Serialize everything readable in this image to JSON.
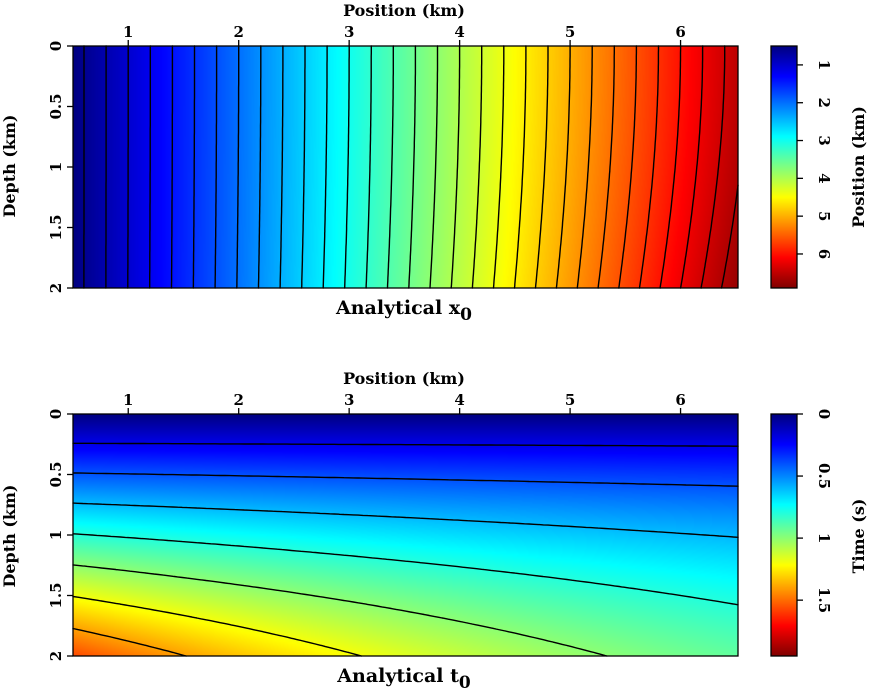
{
  "chart_data": [
    {
      "type": "heatmap",
      "title": "Analytical x",
      "title_subscript": "0",
      "xlabel": "Position (km)",
      "ylabel": "Depth (km)",
      "colorbar_label": "Position (km)",
      "xlim": [
        0.5,
        6.52
      ],
      "ylim": [
        0,
        2
      ],
      "x_ticks": [
        "1",
        "2",
        "3",
        "4",
        "5",
        "6"
      ],
      "y_ticks": [
        "0",
        "0.5",
        "1",
        "1.5",
        "2"
      ],
      "colorbar_range": [
        0.5,
        6.9
      ],
      "colorbar_ticks": [
        "1",
        "2",
        "3",
        "4",
        "5",
        "6"
      ],
      "colormap": "jet",
      "colormap_reversed": true,
      "contour_interval": 0.2,
      "contour_color": "#000000"
    },
    {
      "type": "heatmap",
      "title": "Analytical t",
      "title_subscript": "0",
      "xlabel": "Position (km)",
      "ylabel": "Depth (km)",
      "colorbar_label": "Time (s)",
      "xlim": [
        0.5,
        6.52
      ],
      "ylim": [
        0,
        2
      ],
      "x_ticks": [
        "1",
        "2",
        "3",
        "4",
        "5",
        "6"
      ],
      "y_ticks": [
        "0",
        "0.5",
        "1",
        "1.5",
        "2"
      ],
      "colorbar_range": [
        0,
        1.95
      ],
      "colorbar_ticks": [
        "0",
        "0.5",
        "1",
        "1.5"
      ],
      "colormap": "jet",
      "colormap_reversed": true,
      "contour_interval": 0.2,
      "contour_color": "#000000"
    }
  ]
}
